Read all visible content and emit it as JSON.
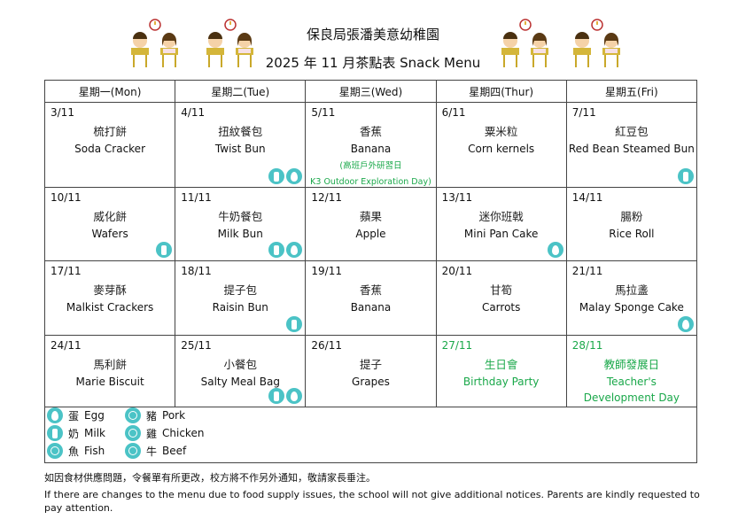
{
  "header": {
    "title": "保良局張潘美意幼稚園",
    "subtitle": "2025 年 11 月茶點表 Snack Menu"
  },
  "days": [
    "星期一(Mon)",
    "星期二(Tue)",
    "星期三(Wed)",
    "星期四(Thur)",
    "星期五(Fri)"
  ],
  "weeks": [
    [
      {
        "date": "3/11",
        "zh": "梳打餅",
        "en": "Soda Cracker",
        "icons": []
      },
      {
        "date": "4/11",
        "zh": "扭紋餐包",
        "en": "Twist Bun",
        "icons": [
          "milk",
          "egg"
        ]
      },
      {
        "date": "5/11",
        "zh": "香蕉",
        "en": "Banana",
        "note1": "(高班戶外研習日",
        "note2": "K3 Outdoor Exploration Day)",
        "icons": []
      },
      {
        "date": "6/11",
        "zh": "粟米粒",
        "en": "Corn kernels",
        "icons": []
      },
      {
        "date": "7/11",
        "zh": "紅豆包",
        "en": "Red Bean Steamed Bun",
        "icons": [
          "milk"
        ]
      }
    ],
    [
      {
        "date": "10/11",
        "zh": "威化餅",
        "en": "Wafers",
        "icons": [
          "milk"
        ]
      },
      {
        "date": "11/11",
        "zh": "牛奶餐包",
        "en": "Milk Bun",
        "icons": [
          "milk",
          "egg"
        ]
      },
      {
        "date": "12/11",
        "zh": "蘋果",
        "en": "Apple",
        "icons": []
      },
      {
        "date": "13/11",
        "zh": "迷你班戟",
        "en": "Mini Pan Cake",
        "icons": [
          "egg"
        ]
      },
      {
        "date": "14/11",
        "zh": "腸粉",
        "en": "Rice Roll",
        "icons": []
      }
    ],
    [
      {
        "date": "17/11",
        "zh": "麥芽酥",
        "en": "Malkist Crackers",
        "icons": []
      },
      {
        "date": "18/11",
        "zh": "提子包",
        "en": "Raisin Bun",
        "icons": [
          "milk"
        ]
      },
      {
        "date": "19/11",
        "zh": "香蕉",
        "en": "Banana",
        "icons": []
      },
      {
        "date": "20/11",
        "zh": "甘筍",
        "en": "Carrots",
        "icons": []
      },
      {
        "date": "21/11",
        "zh": "馬拉盞",
        "en": "Malay Sponge Cake",
        "icons": [
          "egg"
        ]
      }
    ],
    [
      {
        "date": "24/11",
        "zh": "馬利餅",
        "en": "Marie Biscuit",
        "icons": []
      },
      {
        "date": "25/11",
        "zh": "小餐包",
        "en": "Salty Meal Bag",
        "icons": [
          "milk",
          "egg"
        ]
      },
      {
        "date": "26/11",
        "zh": "提子",
        "en": "Grapes",
        "icons": []
      },
      {
        "date": "27/11",
        "zh": "生日會",
        "en": "Birthday Party",
        "green": true,
        "icons": []
      },
      {
        "date": "28/11",
        "zh": "教師發展日",
        "en": "Teacher's",
        "en2": "Development Day",
        "green": true,
        "icons": []
      }
    ]
  ],
  "legend": [
    {
      "icon": "egg",
      "zh": "蛋",
      "en": "Egg"
    },
    {
      "icon": "milk",
      "zh": "奶",
      "en": "Milk"
    },
    {
      "icon": "fish",
      "zh": "魚",
      "en": "Fish"
    },
    {
      "icon": "pork",
      "zh": "豬",
      "en": "Pork"
    },
    {
      "icon": "chicken",
      "zh": "雞",
      "en": "Chicken"
    },
    {
      "icon": "beef",
      "zh": "牛",
      "en": "Beef"
    }
  ],
  "footer": {
    "zh": "如因食材供應問題，令餐單有所更改，校方將不作另外通知，敬請家長垂注。",
    "en": "If there are changes to the menu due to food supply issues, the school will not give additional notices. Parents are kindly requested to pay attention."
  },
  "colors": {
    "icon": "#4bc3c6",
    "green": "#1aa84a"
  }
}
